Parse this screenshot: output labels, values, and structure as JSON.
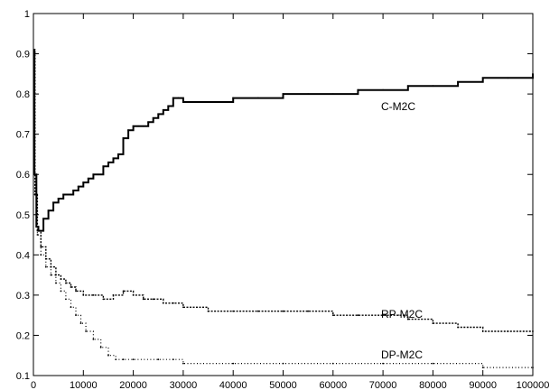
{
  "chart_data": {
    "type": "line",
    "title": "",
    "xlabel": "",
    "ylabel": "",
    "xlim": [
      0,
      100000
    ],
    "ylim": [
      0.1,
      1
    ],
    "x_ticks": [
      0,
      10000,
      20000,
      30000,
      40000,
      50000,
      60000,
      70000,
      80000,
      90000,
      100000
    ],
    "y_ticks": [
      0.1,
      0.2,
      0.3,
      0.4,
      0.5,
      0.6,
      0.7,
      0.8,
      0.9,
      1
    ],
    "x_tick_labels": [
      "0",
      "10000",
      "20000",
      "30000",
      "40000",
      "50000",
      "60000",
      "70000",
      "80000",
      "90000",
      "100000"
    ],
    "y_tick_labels": [
      "0.1",
      "0.2",
      "0.3",
      "0.4",
      "0.5",
      "0.6",
      "0.7",
      "0.8",
      "0.9",
      "1"
    ],
    "grid": false,
    "legend": "none",
    "series": [
      {
        "name": "C-M2C",
        "style": "solid",
        "x": [
          0,
          200,
          600,
          1000,
          2000,
          3000,
          4000,
          5000,
          6000,
          7000,
          8000,
          9000,
          10000,
          11000,
          12000,
          13000,
          14000,
          15000,
          16000,
          17000,
          18000,
          19000,
          20000,
          21000,
          22000,
          23000,
          24000,
          25000,
          26000,
          27000,
          28000,
          29000,
          30000,
          35000,
          40000,
          45000,
          50000,
          55000,
          60000,
          65000,
          70000,
          75000,
          80000,
          85000,
          90000,
          95000,
          100000
        ],
        "y": [
          0.91,
          0.6,
          0.47,
          0.46,
          0.49,
          0.51,
          0.53,
          0.54,
          0.55,
          0.55,
          0.56,
          0.57,
          0.58,
          0.59,
          0.6,
          0.6,
          0.62,
          0.63,
          0.64,
          0.65,
          0.69,
          0.71,
          0.72,
          0.72,
          0.72,
          0.73,
          0.74,
          0.75,
          0.76,
          0.77,
          0.79,
          0.79,
          0.78,
          0.78,
          0.79,
          0.79,
          0.8,
          0.8,
          0.8,
          0.81,
          0.81,
          0.82,
          0.82,
          0.83,
          0.84,
          0.84,
          0.85
        ]
      },
      {
        "name": "RP-M2C",
        "style": "dashed",
        "x": [
          0,
          300,
          800,
          1500,
          2500,
          3500,
          4500,
          5500,
          6500,
          7500,
          8500,
          10000,
          12000,
          14000,
          16000,
          18000,
          20000,
          22000,
          24000,
          26000,
          28000,
          30000,
          35000,
          40000,
          45000,
          50000,
          55000,
          60000,
          65000,
          70000,
          75000,
          80000,
          85000,
          90000,
          95000,
          100000
        ],
        "y": [
          0.91,
          0.55,
          0.46,
          0.42,
          0.39,
          0.37,
          0.35,
          0.34,
          0.33,
          0.32,
          0.31,
          0.3,
          0.3,
          0.29,
          0.3,
          0.31,
          0.3,
          0.29,
          0.29,
          0.28,
          0.28,
          0.27,
          0.26,
          0.26,
          0.26,
          0.26,
          0.26,
          0.25,
          0.25,
          0.25,
          0.24,
          0.23,
          0.22,
          0.21,
          0.21,
          0.21
        ]
      },
      {
        "name": "DP-M2C",
        "style": "dotted",
        "x": [
          0,
          300,
          800,
          1500,
          2500,
          3500,
          4500,
          5500,
          6500,
          7500,
          8500,
          9500,
          10500,
          12000,
          13500,
          15000,
          16500,
          18000,
          20000,
          25000,
          28000,
          30000,
          40000,
          50000,
          60000,
          70000,
          80000,
          90000,
          100000
        ],
        "y": [
          0.91,
          0.55,
          0.45,
          0.4,
          0.37,
          0.35,
          0.33,
          0.31,
          0.29,
          0.27,
          0.25,
          0.23,
          0.21,
          0.19,
          0.17,
          0.15,
          0.14,
          0.14,
          0.14,
          0.14,
          0.14,
          0.13,
          0.13,
          0.13,
          0.13,
          0.13,
          0.13,
          0.12,
          0.12
        ]
      }
    ]
  }
}
